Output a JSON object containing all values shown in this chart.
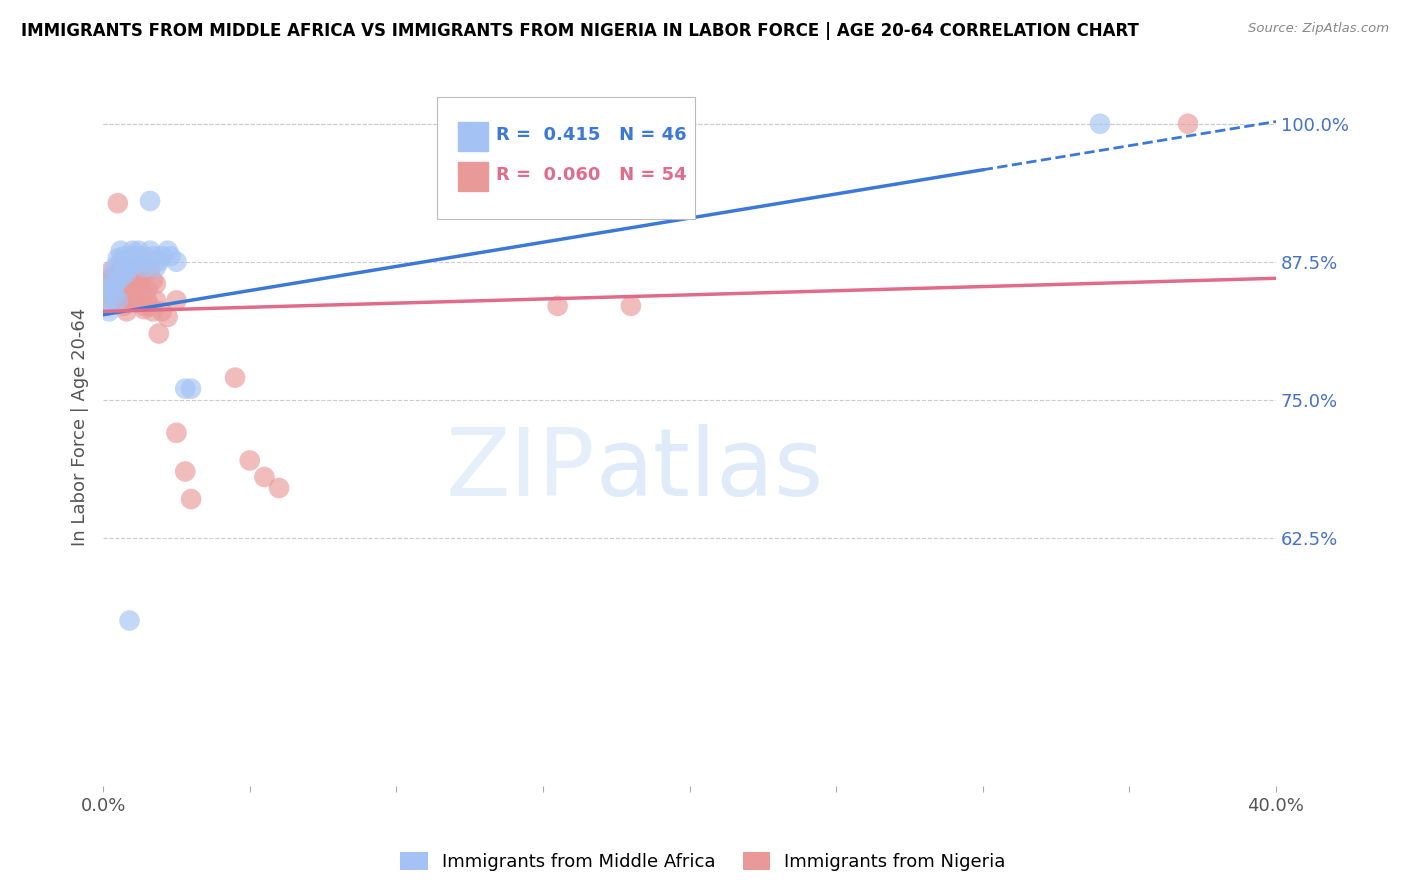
{
  "title": "IMMIGRANTS FROM MIDDLE AFRICA VS IMMIGRANTS FROM NIGERIA IN LABOR FORCE | AGE 20-64 CORRELATION CHART",
  "source": "Source: ZipAtlas.com",
  "ylabel": "In Labor Force | Age 20-64",
  "xlim": [
    0.0,
    0.4
  ],
  "ylim": [
    0.4,
    1.05
  ],
  "xticks": [
    0.0,
    0.05,
    0.1,
    0.15,
    0.2,
    0.25,
    0.3,
    0.35,
    0.4
  ],
  "yticks_right": [
    0.625,
    0.75,
    0.875,
    1.0
  ],
  "ytick_labels_right": [
    "62.5%",
    "75.0%",
    "87.5%",
    "100.0%"
  ],
  "legend1_label": "R =  0.415   N = 46",
  "legend2_label": "R =  0.060   N = 54",
  "blue_color": "#a4c2f4",
  "pink_color": "#ea9999",
  "trend_blue": "#3c78d8",
  "trend_pink": "#e06c8a",
  "watermark_zip": "ZIP",
  "watermark_atlas": "atlas",
  "blue_scatter_x": [
    0.001,
    0.002,
    0.002,
    0.003,
    0.003,
    0.004,
    0.004,
    0.004,
    0.005,
    0.005,
    0.005,
    0.006,
    0.006,
    0.006,
    0.007,
    0.007,
    0.007,
    0.008,
    0.008,
    0.008,
    0.009,
    0.009,
    0.01,
    0.01,
    0.01,
    0.011,
    0.011,
    0.012,
    0.012,
    0.013,
    0.014,
    0.014,
    0.015,
    0.016,
    0.017,
    0.018,
    0.019,
    0.02,
    0.022,
    0.023,
    0.025,
    0.028,
    0.03,
    0.016,
    0.34,
    0.009
  ],
  "blue_scatter_y": [
    0.838,
    0.83,
    0.852,
    0.848,
    0.862,
    0.87,
    0.855,
    0.845,
    0.84,
    0.858,
    0.878,
    0.885,
    0.875,
    0.86,
    0.88,
    0.87,
    0.865,
    0.875,
    0.87,
    0.865,
    0.875,
    0.87,
    0.88,
    0.885,
    0.875,
    0.88,
    0.875,
    0.885,
    0.88,
    0.875,
    0.88,
    0.87,
    0.875,
    0.885,
    0.88,
    0.87,
    0.875,
    0.88,
    0.885,
    0.88,
    0.875,
    0.76,
    0.76,
    0.93,
    1.0,
    0.55
  ],
  "pink_scatter_x": [
    0.001,
    0.002,
    0.002,
    0.003,
    0.003,
    0.004,
    0.004,
    0.004,
    0.005,
    0.005,
    0.005,
    0.006,
    0.006,
    0.006,
    0.007,
    0.007,
    0.007,
    0.008,
    0.008,
    0.009,
    0.009,
    0.01,
    0.01,
    0.01,
    0.011,
    0.011,
    0.012,
    0.012,
    0.013,
    0.013,
    0.014,
    0.014,
    0.015,
    0.015,
    0.016,
    0.016,
    0.017,
    0.017,
    0.018,
    0.018,
    0.019,
    0.02,
    0.022,
    0.025,
    0.028,
    0.03,
    0.045,
    0.05,
    0.055,
    0.06,
    0.025,
    0.155,
    0.18,
    0.37
  ],
  "pink_scatter_y": [
    0.835,
    0.845,
    0.865,
    0.86,
    0.855,
    0.862,
    0.85,
    0.84,
    0.858,
    0.838,
    0.928,
    0.845,
    0.87,
    0.86,
    0.855,
    0.84,
    0.835,
    0.87,
    0.83,
    0.858,
    0.842,
    0.86,
    0.855,
    0.845,
    0.842,
    0.86,
    0.855,
    0.87,
    0.855,
    0.85,
    0.835,
    0.832,
    0.85,
    0.84,
    0.868,
    0.835,
    0.83,
    0.858,
    0.84,
    0.855,
    0.81,
    0.83,
    0.825,
    0.72,
    0.685,
    0.66,
    0.77,
    0.695,
    0.68,
    0.67,
    0.84,
    0.835,
    0.835,
    1.0
  ],
  "trend_blue_x0": 0.0,
  "trend_blue_y0": 0.827,
  "trend_blue_x1": 0.4,
  "trend_blue_y1": 1.002,
  "trend_blue_solid_end": 0.3,
  "trend_pink_x0": 0.0,
  "trend_pink_y0": 0.83,
  "trend_pink_x1": 0.4,
  "trend_pink_y1": 0.86,
  "grid_color": "#cccccc",
  "background_color": "#ffffff",
  "title_color": "#000000",
  "right_tick_color": "#4472c4"
}
